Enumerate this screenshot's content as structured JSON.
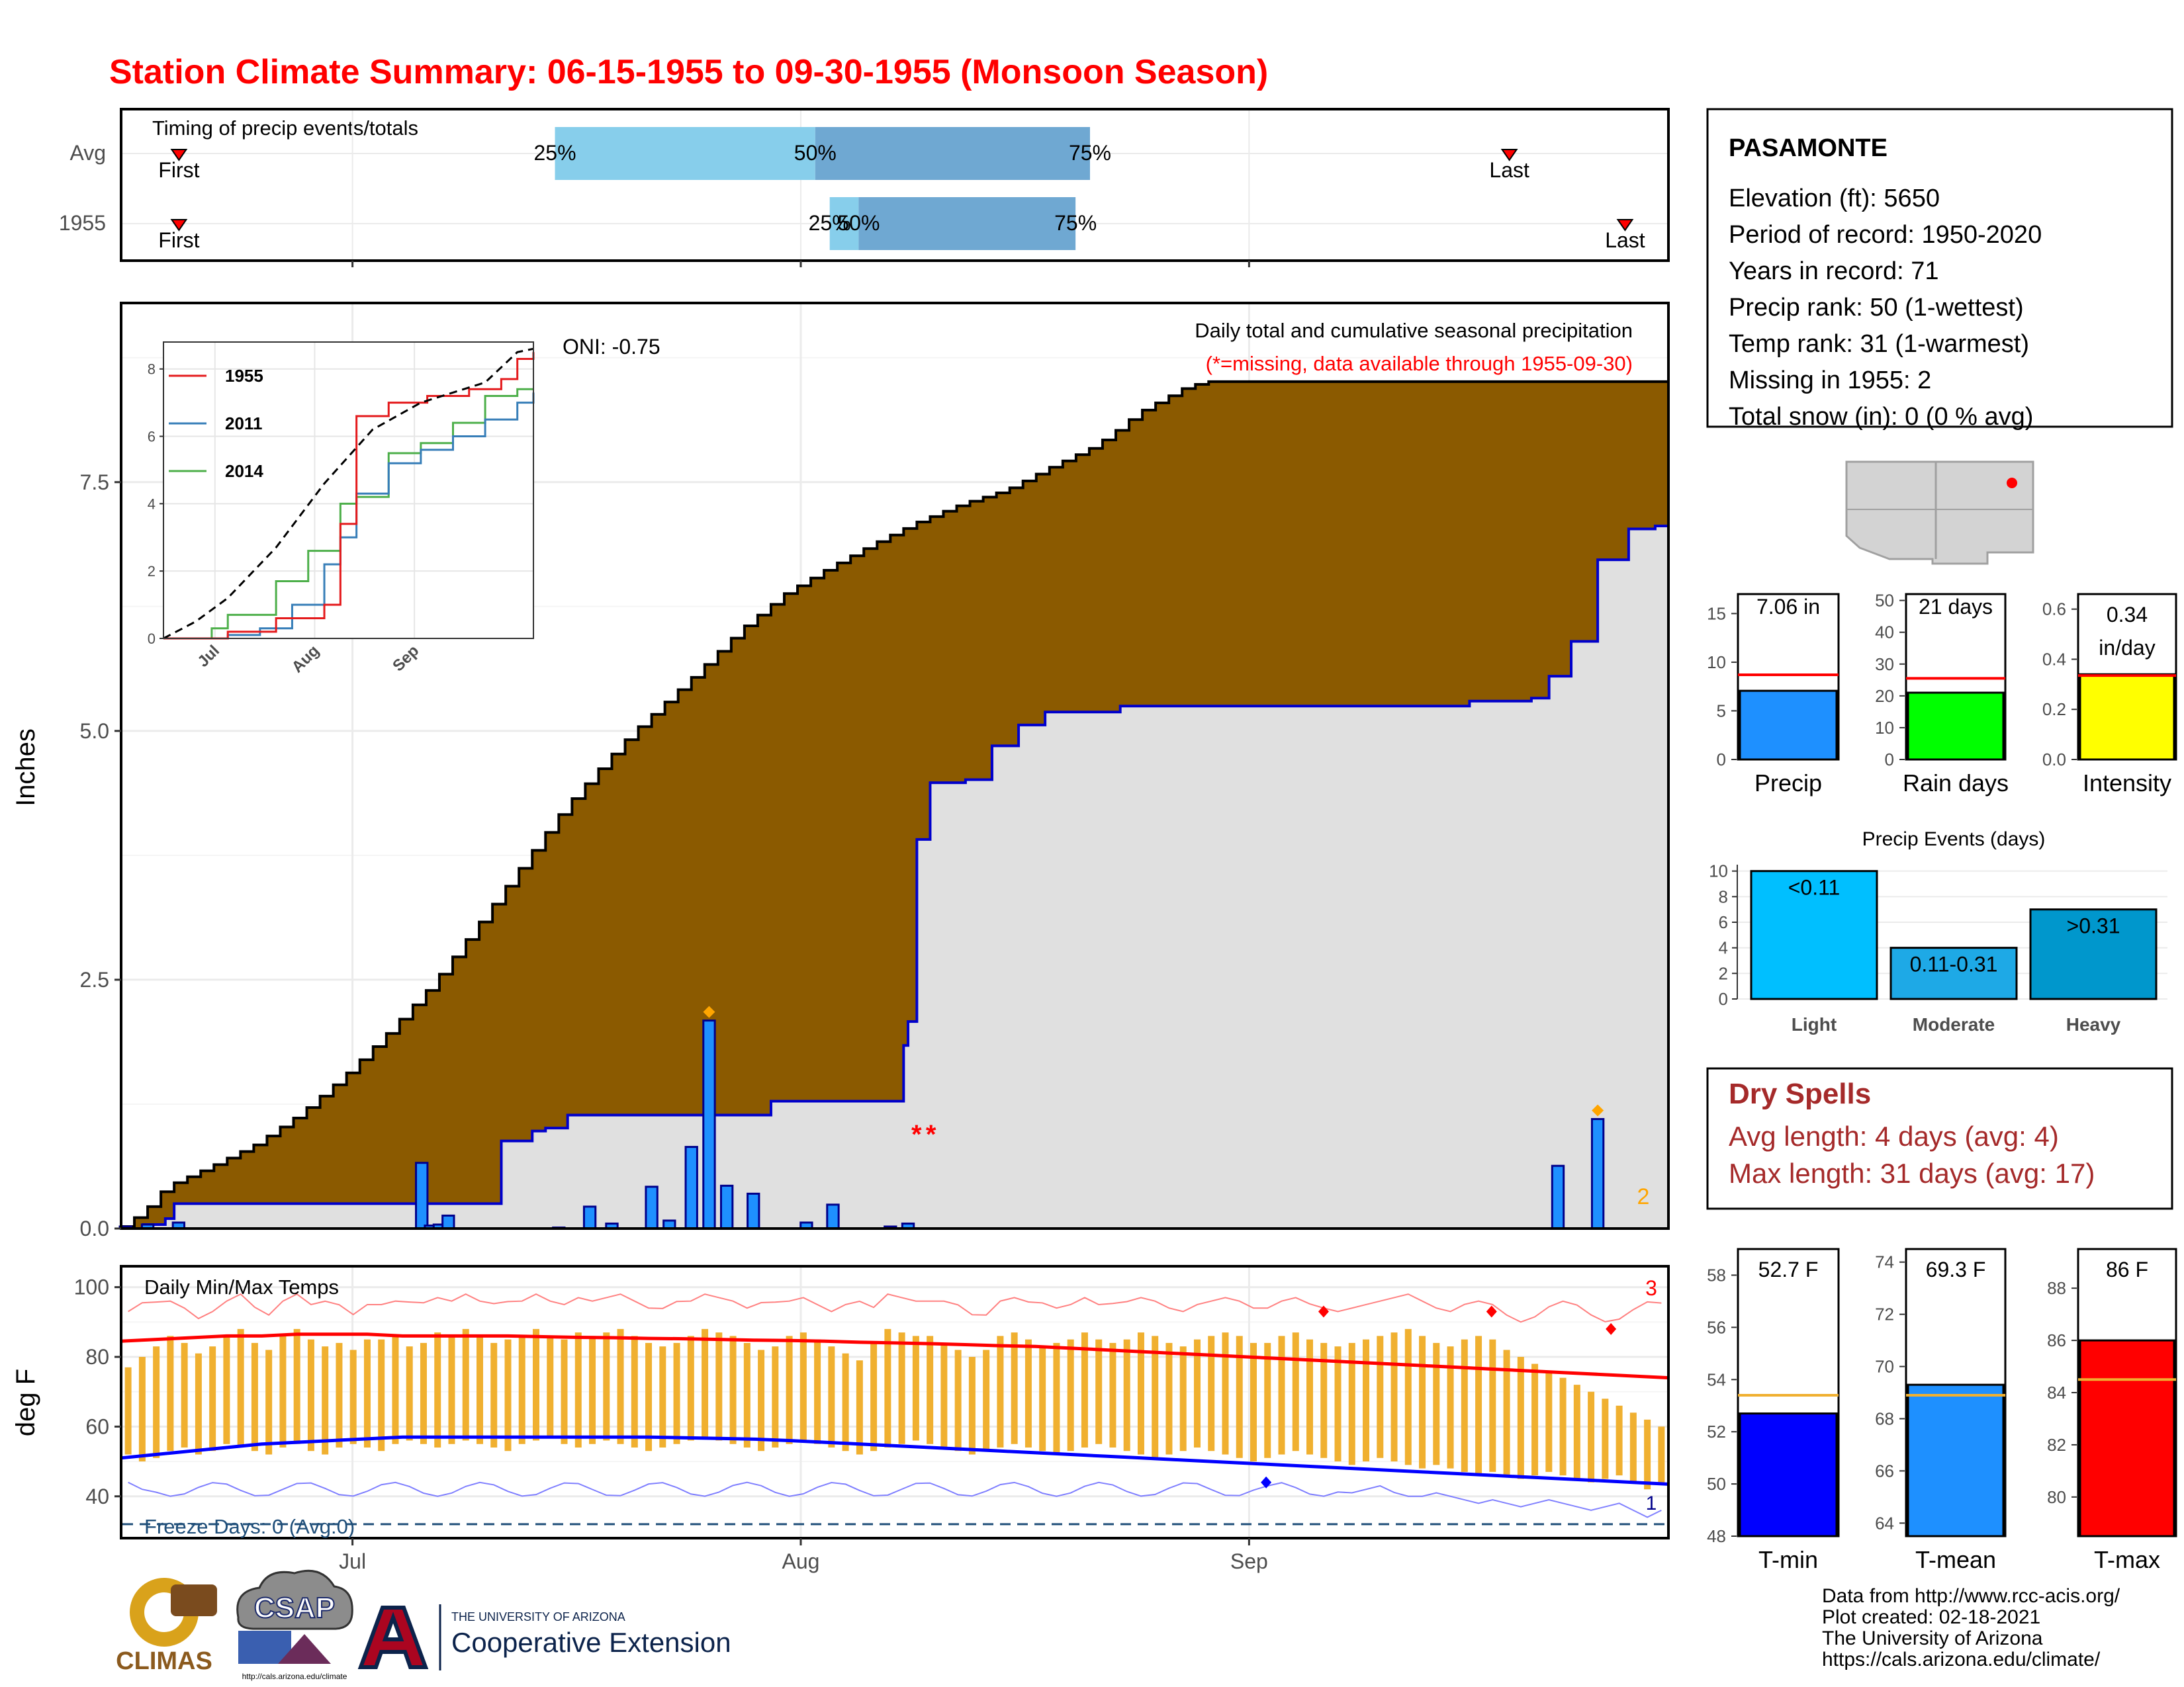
{
  "title": "Station Climate Summary: 06-15-1955 to 09-30-1955 (Monsoon Season)",
  "colors": {
    "title": "#ff0000",
    "cumulative_avg_fill": "#8b5a00",
    "obs_cum_line": "#0000cc",
    "gray_fill": "#e0e0e0",
    "daily_bar": "#1e90ff",
    "tmax_line": "#ff0000",
    "tmin_line": "#0000ff",
    "range_bar": "#f0b030",
    "dry_spell": "#a52a2a",
    "freeze_line": "#1f4e79"
  },
  "x_axis": {
    "tick_labels": [
      "Jul",
      "Aug",
      "Sep"
    ]
  },
  "timing": {
    "title": "Timing of precip events/totals",
    "rows": [
      {
        "label": "Avg",
        "first_label": "First",
        "last_label": "Last",
        "p25_label": "25%",
        "p50_label": "50%",
        "p75_label": "75%",
        "first": "06-19",
        "p25": "07-15",
        "p50": "08-02",
        "p75": "08-21",
        "last": "09-19"
      },
      {
        "label": "1955",
        "first_label": "First",
        "last_label": "Last",
        "p25_label": "25%",
        "p50_label": "50%",
        "p75_label": "75%",
        "first": "06-19",
        "p25": "08-03",
        "p50": "08-05",
        "p75": "08-20",
        "last": "09-27"
      }
    ]
  },
  "precip_panel": {
    "ylabel": "Inches",
    "y_ticks": [
      "0.0",
      "2.5",
      "5.0",
      "7.5"
    ],
    "oni_label": "ONI: -0.75",
    "label1": "Daily total and cumulative seasonal precipitation",
    "label2": "(*=missing, data available through 1955-09-30)",
    "missing_marker": "*",
    "missing_count": "2"
  },
  "inset": {
    "y_ticks": [
      "0",
      "2",
      "4",
      "6",
      "8"
    ],
    "x_ticks": [
      "Jul",
      "Aug",
      "Sep"
    ],
    "legend": [
      {
        "name": "1955",
        "color": "#e41a1c"
      },
      {
        "name": "2011",
        "color": "#377eb8"
      },
      {
        "name": "2014",
        "color": "#4daf4a"
      }
    ]
  },
  "temp_panel": {
    "ylabel": "deg F",
    "title": "Daily Min/Max Temps",
    "y_ticks": [
      "40",
      "60",
      "80",
      "100"
    ],
    "count_high": "3",
    "count_low": "1",
    "freeze_label": "Freeze Days: 0 (Avg:0)"
  },
  "station": {
    "name": "PASAMONTE",
    "lines": [
      "Elevation (ft): 5650",
      "Period of record: 1950-2020",
      "Years in record: 71",
      "Precip rank: 50 (1-wettest)",
      "Temp rank: 31 (1-warmest)",
      "Missing in 1955: 2",
      "Total snow (in): 0 (0 % avg)"
    ]
  },
  "mini_bars": [
    {
      "label": "Precip",
      "value_label": "7.06 in",
      "value": 7.06,
      "avg": 8.7,
      "ylim": [
        0,
        17
      ],
      "ticks": [
        "0",
        "5",
        "10",
        "15"
      ],
      "color": "#1e90ff"
    },
    {
      "label": "Rain days",
      "value_label": "21 days",
      "value": 21,
      "avg": 25.5,
      "ylim": [
        0,
        52
      ],
      "ticks": [
        "0",
        "10",
        "20",
        "30",
        "40",
        "50"
      ],
      "color": "#00ff00"
    },
    {
      "label": "Intensity",
      "value_label_1": "0.34",
      "value_label_2": "in/day",
      "value": 0.34,
      "avg": 0.335,
      "ylim": [
        0,
        0.66
      ],
      "ticks": [
        "0.0",
        "0.2",
        "0.4",
        "0.6"
      ],
      "color": "#ffff00"
    }
  ],
  "events": {
    "title": "Precip Events (days)",
    "ticks": [
      "0",
      "2",
      "4",
      "6",
      "8",
      "10"
    ],
    "bars": [
      {
        "name": "Light",
        "label": "<0.11",
        "value": 10,
        "color": "#00bfff"
      },
      {
        "name": "Moderate",
        "label": "0.11-0.31",
        "value": 4,
        "color": "#1ea9e6"
      },
      {
        "name": "Heavy",
        "label": ">0.31",
        "value": 7,
        "color": "#0097cc"
      }
    ]
  },
  "dry_spells": {
    "title": "Dry Spells",
    "avg_line": "Avg length: 4 days (avg: 4)",
    "max_line": "Max length: 31 days (avg: 17)"
  },
  "temp_bars": [
    {
      "label": "T-min",
      "value_label": "52.7 F",
      "value": 52.7,
      "avg": 53.4,
      "ylim": [
        48,
        59
      ],
      "ticks": [
        "48",
        "50",
        "52",
        "54",
        "56",
        "58"
      ],
      "color": "#0000ff"
    },
    {
      "label": "T-mean",
      "value_label": "69.3 F",
      "value": 69.3,
      "avg": 68.9,
      "ylim": [
        63.5,
        74.5
      ],
      "ticks": [
        "64",
        "66",
        "68",
        "70",
        "72",
        "74"
      ],
      "color": "#1e90ff"
    },
    {
      "label": "T-max",
      "value_label": "86 F",
      "value": 86,
      "avg": 84.5,
      "ylim": [
        78.5,
        89.5
      ],
      "ticks": [
        "80",
        "82",
        "84",
        "86",
        "88"
      ],
      "color": "#ff0000"
    }
  ],
  "footer": {
    "lines": [
      "Data from http://www.rcc-acis.org/",
      "Plot created: 02-18-2021",
      "The University of Arizona",
      "https://cals.arizona.edu/climate/"
    ],
    "logo_climas": "CLIMAS",
    "logo_csap": "CSAP",
    "logo_csap_url": "http://cals.arizona.edu/climate",
    "logo_ua_small": "THE UNIVERSITY OF ARIZONA",
    "logo_ua_big": "Cooperative Extension"
  },
  "chart_data": {
    "type": "area",
    "title": "Daily total and cumulative seasonal precipitation",
    "ylabel": "Inches",
    "ylim": [
      0,
      9.3
    ],
    "x_range": [
      "1955-06-15",
      "1955-09-30"
    ],
    "average_cumulative": [
      [
        0,
        0.02
      ],
      [
        5,
        0.17
      ],
      [
        10,
        0.42
      ],
      [
        20,
        0.62
      ],
      [
        30,
        0.84
      ],
      [
        40,
        1.14
      ],
      [
        50,
        1.52
      ],
      [
        60,
        1.96
      ],
      [
        70,
        2.44
      ],
      [
        80,
        3.02
      ],
      [
        90,
        3.62
      ],
      [
        100,
        4.22
      ],
      [
        110,
        4.72
      ],
      [
        115,
        4.96
      ],
      [
        130,
        5.58
      ],
      [
        140,
        6.02
      ],
      [
        150,
        6.38
      ],
      [
        160,
        6.64
      ],
      [
        170,
        6.88
      ],
      [
        180,
        7.1
      ],
      [
        190,
        7.28
      ],
      [
        200,
        7.42
      ],
      [
        210,
        7.65
      ],
      [
        220,
        7.86
      ],
      [
        225,
        8.02
      ],
      [
        230,
        8.2
      ],
      [
        240,
        8.44
      ],
      [
        245,
        8.51
      ]
    ],
    "observed_cumulative_1955": [
      [
        0,
        0
      ],
      [
        5,
        0.04
      ],
      [
        10,
        0.1
      ],
      [
        12,
        0.25
      ],
      [
        82,
        0.25
      ],
      [
        86,
        0.88
      ],
      [
        93,
        0.98
      ],
      [
        96,
        1.01
      ],
      [
        101,
        1.14
      ],
      [
        144,
        1.14
      ],
      [
        147,
        1.28
      ],
      [
        171,
        1.28
      ],
      [
        177,
        1.84
      ],
      [
        178,
        2.08
      ],
      [
        180,
        3.91
      ],
      [
        183,
        4.48
      ],
      [
        191,
        4.51
      ],
      [
        197,
        4.85
      ],
      [
        203,
        5.06
      ],
      [
        209,
        5.19
      ],
      [
        223,
        5.19
      ],
      [
        226,
        5.25
      ],
      [
        305,
        5.3
      ],
      [
        319,
        5.33
      ],
      [
        323,
        5.55
      ],
      [
        328,
        5.9
      ],
      [
        334,
        6.72
      ],
      [
        341,
        7.03
      ],
      [
        347,
        7.06
      ]
    ],
    "daily_totals_1955": [
      [
        1,
        0.02
      ],
      [
        6,
        0.04
      ],
      [
        13,
        0.06
      ],
      [
        68,
        0.66
      ],
      [
        70,
        0.03
      ],
      [
        72,
        0.04
      ],
      [
        74,
        0.13
      ],
      [
        99,
        0.01
      ],
      [
        106,
        0.22
      ],
      [
        111,
        0.05
      ],
      [
        120,
        0.42
      ],
      [
        124,
        0.08
      ],
      [
        129,
        0.82
      ],
      [
        133,
        2.09
      ],
      [
        137,
        0.43
      ],
      [
        143,
        0.35
      ],
      [
        155,
        0.06
      ],
      [
        161,
        0.24
      ],
      [
        174,
        0.02
      ],
      [
        178,
        0.05
      ],
      [
        325,
        0.63
      ],
      [
        334,
        1.1
      ]
    ],
    "missing_days": [
      "1955-08-09",
      "1955-08-10"
    ],
    "inset_cumulative": {
      "climatology": [
        [
          0,
          0
        ],
        [
          10,
          0.5
        ],
        [
          20,
          1.2
        ],
        [
          35,
          2.7
        ],
        [
          50,
          4.6
        ],
        [
          65,
          6.2
        ],
        [
          80,
          7.0
        ],
        [
          100,
          7.6
        ],
        [
          110,
          8.5
        ],
        [
          115,
          8.6
        ]
      ],
      "1955": [
        [
          0,
          0
        ],
        [
          20,
          0.2
        ],
        [
          35,
          0.6
        ],
        [
          50,
          1.0
        ],
        [
          55,
          3.4
        ],
        [
          60,
          6.6
        ],
        [
          70,
          7.0
        ],
        [
          82,
          7.2
        ],
        [
          95,
          7.4
        ],
        [
          105,
          7.7
        ],
        [
          110,
          8.3
        ],
        [
          115,
          8.5
        ]
      ],
      "2011": [
        [
          0,
          0
        ],
        [
          20,
          0.1
        ],
        [
          30,
          0.3
        ],
        [
          40,
          1.0
        ],
        [
          50,
          2.2
        ],
        [
          55,
          3.0
        ],
        [
          60,
          4.3
        ],
        [
          70,
          5.2
        ],
        [
          80,
          5.6
        ],
        [
          90,
          6.0
        ],
        [
          100,
          6.5
        ],
        [
          110,
          7.0
        ],
        [
          115,
          7.3
        ]
      ],
      "2014": [
        [
          0,
          0
        ],
        [
          15,
          0.3
        ],
        [
          20,
          0.7
        ],
        [
          35,
          1.7
        ],
        [
          45,
          2.6
        ],
        [
          55,
          4.0
        ],
        [
          60,
          4.2
        ],
        [
          70,
          5.5
        ],
        [
          80,
          5.8
        ],
        [
          90,
          6.4
        ],
        [
          100,
          7.2
        ],
        [
          110,
          7.4
        ],
        [
          115,
          7.4
        ]
      ]
    },
    "temperatures": {
      "ylim": [
        28,
        106
      ],
      "daily_max": [
        77,
        80,
        83,
        86,
        84,
        81,
        83,
        86,
        88,
        84,
        82,
        86,
        88,
        85,
        83,
        84,
        82,
        85,
        85,
        86,
        83,
        84,
        87,
        86,
        88,
        86,
        84,
        85,
        86,
        88,
        86,
        85,
        87,
        86,
        87,
        88,
        86,
        84,
        83,
        84,
        86,
        88,
        87,
        86,
        84,
        82,
        83,
        86,
        87,
        85,
        83,
        81,
        79,
        84,
        88,
        87,
        86,
        86,
        84,
        82,
        80,
        82,
        86,
        87,
        85,
        83,
        84,
        85,
        87,
        85,
        84,
        85,
        87,
        86,
        84,
        83,
        85,
        86,
        87,
        86,
        84,
        84,
        86,
        87,
        85,
        84,
        83,
        84,
        85,
        86,
        87,
        88,
        86,
        84,
        83,
        85,
        86,
        85,
        82,
        80,
        78,
        76,
        74,
        72,
        70,
        68,
        66,
        64,
        62,
        60
      ],
      "daily_min": [
        52,
        50,
        51,
        53,
        54,
        52,
        53,
        55,
        54,
        53,
        52,
        54,
        55,
        53,
        52,
        54,
        55,
        54,
        53,
        55,
        56,
        55,
        54,
        55,
        56,
        55,
        54,
        53,
        55,
        56,
        57,
        55,
        54,
        55,
        56,
        55,
        54,
        53,
        54,
        55,
        56,
        57,
        56,
        55,
        54,
        53,
        54,
        55,
        56,
        55,
        54,
        53,
        52,
        53,
        54,
        55,
        56,
        55,
        54,
        53,
        52,
        53,
        54,
        55,
        54,
        53,
        52,
        53,
        54,
        55,
        54,
        53,
        52,
        51,
        52,
        53,
        54,
        53,
        52,
        51,
        50,
        51,
        52,
        53,
        52,
        51,
        50,
        49,
        50,
        51,
        50,
        49,
        48,
        49,
        48,
        47,
        46,
        47,
        46,
        45,
        46,
        47,
        46,
        45,
        44,
        45,
        46,
        44,
        42,
        44
      ],
      "avg_max": [
        84.5,
        85,
        85.5,
        86,
        86,
        86.5,
        86.5,
        86.5,
        86,
        86,
        86,
        86,
        85.8,
        85.6,
        85.5,
        85.3,
        85.2,
        85,
        84.8,
        84.7,
        84.5,
        84.2,
        84,
        83.8,
        83.5,
        83.2,
        83,
        82.5,
        82,
        81.5,
        81,
        80.5,
        80,
        79.5,
        79,
        78.5,
        78,
        77.5,
        77,
        76.5,
        76,
        75.5,
        75,
        74.5,
        74
      ],
      "avg_min": [
        51,
        52,
        53,
        54,
        55,
        55.5,
        56,
        56.5,
        57,
        57,
        57,
        57,
        57,
        57,
        57,
        57,
        56.8,
        56.6,
        56.4,
        56,
        55.5,
        55,
        54.5,
        54,
        53.5,
        53,
        52.5,
        52,
        51.5,
        51,
        50.5,
        50,
        49.5,
        49,
        48.5,
        48,
        47.5,
        47,
        46.5,
        46,
        45.5,
        45,
        44.5,
        44,
        43.5
      ],
      "record_max_markers": [
        [
          272,
          93
        ],
        [
          310,
          93
        ],
        [
          337,
          88
        ]
      ],
      "record_min_markers": [
        [
          259,
          44
        ]
      ],
      "freeze_threshold": 32
    }
  }
}
